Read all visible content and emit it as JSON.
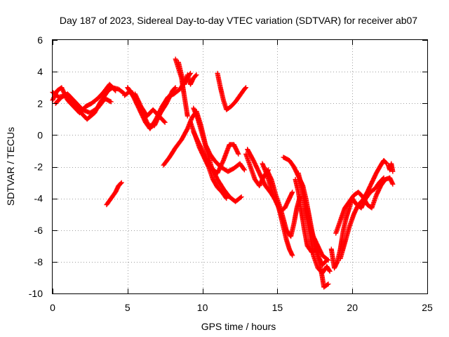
{
  "chart_data": {
    "type": "scatter",
    "title": "Day 187 of 2023, Sidereal Day-to-day VTEC variation (SDTVAR) for receiver ab07",
    "xlabel": "GPS time / hours",
    "ylabel": "SDTVAR / TECUs",
    "xlim": [
      0,
      25
    ],
    "ylim": [
      -10,
      6
    ],
    "xticks": [
      0,
      5,
      10,
      15,
      20,
      25
    ],
    "yticks": [
      -10,
      -8,
      -6,
      -4,
      -2,
      0,
      2,
      4,
      6
    ],
    "grid": true,
    "marker": "plus",
    "color": "#ff0000",
    "tracks": [
      [
        [
          0.0,
          2.7
        ],
        [
          0.4,
          2.4
        ],
        [
          0.9,
          2.5
        ],
        [
          1.3,
          2.2
        ],
        [
          1.8,
          1.5
        ],
        [
          2.3,
          1.0
        ],
        [
          2.8,
          1.4
        ],
        [
          3.2,
          2.1
        ],
        [
          3.7,
          2.8
        ],
        [
          4.0,
          3.0
        ],
        [
          4.4,
          2.9
        ],
        [
          4.8,
          2.6
        ]
      ],
      [
        [
          0.0,
          2.2
        ],
        [
          0.3,
          2.8
        ],
        [
          0.6,
          3.0
        ],
        [
          1.0,
          2.2
        ],
        [
          1.4,
          1.8
        ],
        [
          1.8,
          1.4
        ],
        [
          2.2,
          1.8
        ],
        [
          2.6,
          2.0
        ],
        [
          3.0,
          2.3
        ],
        [
          3.4,
          2.7
        ],
        [
          3.8,
          3.2
        ],
        [
          4.2,
          2.8
        ]
      ],
      [
        [
          0.2,
          2.0
        ],
        [
          0.6,
          2.4
        ],
        [
          1.0,
          2.6
        ],
        [
          1.5,
          2.1
        ],
        [
          2.0,
          1.6
        ],
        [
          2.5,
          1.4
        ],
        [
          3.0,
          1.7
        ],
        [
          3.5,
          2.3
        ],
        [
          3.9,
          2.1
        ]
      ],
      [
        [
          3.6,
          -4.4
        ],
        [
          3.9,
          -4.0
        ],
        [
          4.2,
          -3.6
        ],
        [
          4.4,
          -3.2
        ],
        [
          4.6,
          -3.0
        ]
      ],
      [
        [
          4.8,
          2.5
        ],
        [
          5.2,
          2.8
        ],
        [
          5.6,
          2.2
        ],
        [
          6.0,
          1.4
        ],
        [
          6.4,
          0.6
        ],
        [
          6.8,
          0.6
        ],
        [
          7.2,
          1.4
        ],
        [
          7.6,
          2.0
        ],
        [
          8.0,
          2.8
        ],
        [
          8.2,
          3.0
        ]
      ],
      [
        [
          5.0,
          3.0
        ],
        [
          5.4,
          2.4
        ],
        [
          5.8,
          1.6
        ],
        [
          6.2,
          0.8
        ],
        [
          6.5,
          0.4
        ],
        [
          6.9,
          1.0
        ],
        [
          7.3,
          1.8
        ],
        [
          7.7,
          2.4
        ],
        [
          8.1,
          2.6
        ],
        [
          8.5,
          2.9
        ],
        [
          8.9,
          3.5
        ],
        [
          9.2,
          3.9
        ]
      ],
      [
        [
          5.5,
          2.6
        ],
        [
          5.9,
          1.8
        ],
        [
          6.3,
          1.2
        ],
        [
          6.7,
          1.6
        ],
        [
          7.1,
          1.2
        ],
        [
          7.5,
          0.8
        ]
      ],
      [
        [
          8.2,
          4.8
        ],
        [
          8.4,
          4.2
        ],
        [
          8.6,
          3.6
        ],
        [
          8.7,
          3.0
        ],
        [
          8.8,
          2.4
        ],
        [
          8.9,
          1.8
        ],
        [
          9.0,
          1.2
        ]
      ],
      [
        [
          8.4,
          4.6
        ],
        [
          8.6,
          3.8
        ],
        [
          8.8,
          3.2
        ],
        [
          9.0,
          3.8
        ],
        [
          9.2,
          3.2
        ],
        [
          9.4,
          3.6
        ],
        [
          9.6,
          3.8
        ]
      ],
      [
        [
          7.4,
          -1.9
        ],
        [
          7.8,
          -1.4
        ],
        [
          8.2,
          -0.8
        ],
        [
          8.6,
          -0.3
        ],
        [
          9.0,
          0.4
        ],
        [
          9.3,
          1.1
        ],
        [
          9.6,
          1.5
        ],
        [
          9.9,
          0.6
        ],
        [
          10.2,
          -0.6
        ],
        [
          10.5,
          -1.2
        ],
        [
          10.8,
          -1.6
        ],
        [
          11.2,
          -2.0
        ],
        [
          11.7,
          -2.3
        ],
        [
          12.1,
          -2.1
        ],
        [
          12.5,
          -1.8
        ],
        [
          12.8,
          -2.2
        ]
      ],
      [
        [
          9.4,
          1.7
        ],
        [
          9.7,
          1.0
        ],
        [
          10.0,
          0.0
        ],
        [
          10.3,
          -1.0
        ],
        [
          10.6,
          -2.0
        ],
        [
          11.0,
          -2.8
        ],
        [
          11.4,
          -3.4
        ],
        [
          11.8,
          -3.9
        ],
        [
          12.2,
          -4.2
        ],
        [
          12.6,
          -3.9
        ]
      ],
      [
        [
          9.2,
          0.8
        ],
        [
          9.5,
          0.0
        ],
        [
          9.8,
          -0.8
        ],
        [
          10.1,
          -1.4
        ],
        [
          10.4,
          -2.0
        ],
        [
          10.7,
          -2.8
        ],
        [
          11.0,
          -3.3
        ],
        [
          11.3,
          -3.6
        ],
        [
          11.6,
          -4.0
        ]
      ],
      [
        [
          9.4,
          0.2
        ],
        [
          9.8,
          -0.6
        ],
        [
          10.2,
          -1.4
        ],
        [
          10.6,
          -2.1
        ],
        [
          11.0,
          -2.4
        ],
        [
          11.4,
          -1.6
        ],
        [
          11.8,
          -0.6
        ],
        [
          12.1,
          -0.6
        ],
        [
          12.4,
          -1.2
        ]
      ],
      [
        [
          11.0,
          3.9
        ],
        [
          11.2,
          3.0
        ],
        [
          11.4,
          2.2
        ],
        [
          11.6,
          1.6
        ],
        [
          11.9,
          1.8
        ],
        [
          12.2,
          2.1
        ],
        [
          12.5,
          2.5
        ],
        [
          12.8,
          2.9
        ],
        [
          12.9,
          3.0
        ]
      ],
      [
        [
          12.9,
          -1.2
        ],
        [
          13.2,
          -2.0
        ],
        [
          13.5,
          -2.8
        ],
        [
          13.8,
          -3.2
        ],
        [
          14.1,
          -2.6
        ],
        [
          14.4,
          -2.2
        ]
      ],
      [
        [
          13.0,
          -0.9
        ],
        [
          13.4,
          -1.6
        ],
        [
          13.8,
          -2.4
        ],
        [
          14.2,
          -3.2
        ],
        [
          14.6,
          -3.7
        ],
        [
          15.0,
          -4.3
        ],
        [
          15.2,
          -5.0
        ],
        [
          15.4,
          -5.8
        ],
        [
          15.6,
          -6.6
        ],
        [
          15.8,
          -7.2
        ],
        [
          16.0,
          -7.6
        ]
      ],
      [
        [
          14.0,
          -1.8
        ],
        [
          14.3,
          -2.5
        ],
        [
          14.6,
          -3.4
        ],
        [
          14.9,
          -4.2
        ],
        [
          15.2,
          -4.8
        ],
        [
          15.5,
          -4.6
        ],
        [
          15.8,
          -4.0
        ],
        [
          16.0,
          -3.6
        ]
      ],
      [
        [
          14.3,
          -2.2
        ],
        [
          14.6,
          -2.8
        ],
        [
          14.9,
          -3.8
        ],
        [
          15.2,
          -4.6
        ],
        [
          15.4,
          -5.3
        ],
        [
          15.6,
          -6.0
        ],
        [
          15.9,
          -6.4
        ],
        [
          16.1,
          -5.6
        ],
        [
          16.3,
          -4.6
        ],
        [
          16.5,
          -3.9
        ]
      ],
      [
        [
          15.4,
          -1.4
        ],
        [
          15.8,
          -1.6
        ],
        [
          16.1,
          -2.0
        ],
        [
          16.4,
          -2.6
        ],
        [
          16.7,
          -3.2
        ],
        [
          16.9,
          -4.0
        ],
        [
          17.1,
          -5.0
        ],
        [
          17.3,
          -6.0
        ],
        [
          17.5,
          -7.0
        ],
        [
          17.8,
          -8.0
        ],
        [
          18.0,
          -9.0
        ],
        [
          18.1,
          -9.6
        ],
        [
          18.4,
          -9.4
        ]
      ],
      [
        [
          16.2,
          -2.8
        ],
        [
          16.4,
          -3.6
        ],
        [
          16.6,
          -4.8
        ],
        [
          16.8,
          -6.0
        ],
        [
          17.0,
          -7.0
        ],
        [
          17.3,
          -7.4
        ],
        [
          17.6,
          -7.2
        ],
        [
          17.8,
          -7.8
        ],
        [
          18.0,
          -8.2
        ],
        [
          18.3,
          -7.9
        ]
      ],
      [
        [
          16.4,
          -2.4
        ],
        [
          16.6,
          -3.2
        ],
        [
          16.8,
          -4.2
        ],
        [
          17.0,
          -5.4
        ],
        [
          17.2,
          -6.4
        ],
        [
          17.4,
          -7.6
        ],
        [
          17.7,
          -8.4
        ],
        [
          18.0,
          -8.7
        ],
        [
          18.3,
          -8.3
        ],
        [
          18.5,
          -8.6
        ]
      ],
      [
        [
          16.6,
          -3.0
        ],
        [
          16.8,
          -4.0
        ],
        [
          17.0,
          -5.0
        ],
        [
          17.2,
          -5.8
        ],
        [
          17.4,
          -6.4
        ],
        [
          17.7,
          -7.0
        ],
        [
          18.0,
          -7.6
        ],
        [
          18.4,
          -7.9
        ]
      ],
      [
        [
          18.6,
          -7.2
        ],
        [
          18.8,
          -8.4
        ],
        [
          19.0,
          -8.0
        ],
        [
          19.2,
          -7.2
        ],
        [
          19.4,
          -6.0
        ],
        [
          19.6,
          -5.2
        ],
        [
          19.8,
          -4.6
        ],
        [
          20.0,
          -4.0
        ],
        [
          20.3,
          -4.4
        ],
        [
          20.6,
          -4.6
        ],
        [
          20.9,
          -4.0
        ],
        [
          21.2,
          -3.6
        ],
        [
          21.5,
          -3.4
        ],
        [
          21.8,
          -3.0
        ],
        [
          22.1,
          -2.7
        ]
      ],
      [
        [
          18.9,
          -6.2
        ],
        [
          19.2,
          -5.4
        ],
        [
          19.5,
          -4.6
        ],
        [
          19.8,
          -4.2
        ],
        [
          20.1,
          -3.8
        ],
        [
          20.4,
          -3.6
        ],
        [
          20.7,
          -3.9
        ],
        [
          21.0,
          -4.4
        ],
        [
          21.3,
          -4.6
        ],
        [
          21.6,
          -3.8
        ],
        [
          21.9,
          -3.2
        ],
        [
          22.2,
          -2.8
        ],
        [
          22.5,
          -2.7
        ],
        [
          22.7,
          -3.1
        ]
      ],
      [
        [
          19.2,
          -7.8
        ],
        [
          19.5,
          -6.8
        ],
        [
          19.8,
          -5.8
        ],
        [
          20.1,
          -5.0
        ],
        [
          20.4,
          -4.4
        ],
        [
          20.7,
          -4.1
        ],
        [
          21.0,
          -3.6
        ],
        [
          21.3,
          -3.0
        ],
        [
          21.6,
          -2.4
        ],
        [
          21.9,
          -1.9
        ],
        [
          22.1,
          -1.6
        ],
        [
          22.3,
          -1.8
        ]
      ],
      [
        [
          22.4,
          -1.9
        ],
        [
          22.5,
          -2.2
        ],
        [
          22.6,
          -1.8
        ],
        [
          22.7,
          -2.3
        ]
      ]
    ]
  }
}
